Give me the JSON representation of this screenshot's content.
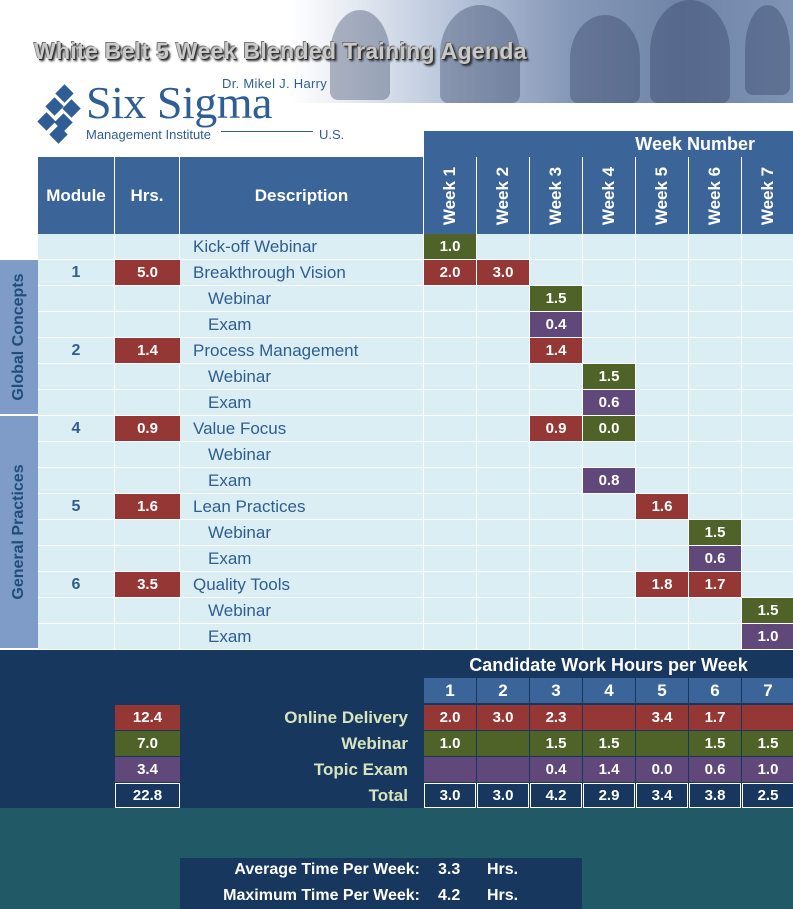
{
  "title": "White Belt 5 Week Blended  Training Agenda",
  "logo": {
    "top": "Dr. Mikel J. Harry",
    "main": "Six Sigma",
    "sub": "Management Institute",
    "country": "U.S."
  },
  "colors": {
    "header_blue": "#3b6498",
    "row_bg": "#daeef3",
    "online": "#953735",
    "webinar": "#4f6228",
    "exam": "#60497a",
    "navy": "#17375e",
    "teal": "#215967"
  },
  "table": {
    "week_number_label": "Week Number",
    "col_module": "Module",
    "col_hrs": "Hrs.",
    "col_description": "Description",
    "weeks": [
      "Week 1",
      "Week 2",
      "Week 3",
      "Week 4",
      "Week 5",
      "Week 6",
      "Week 7"
    ],
    "sections": [
      "Global Concepts",
      "General Practices"
    ],
    "rows": [
      {
        "module": "",
        "hrs": "",
        "desc": "Kick-off Webinar",
        "sub": false,
        "cells": [
          {
            "w": 0,
            "v": "1.0",
            "t": "green"
          }
        ]
      },
      {
        "module": "1",
        "hrs": "5.0",
        "desc": "Breakthrough Vision",
        "sub": false,
        "cells": [
          {
            "w": 0,
            "v": "2.0",
            "t": "red"
          },
          {
            "w": 1,
            "v": "3.0",
            "t": "red"
          }
        ]
      },
      {
        "module": "",
        "hrs": "",
        "desc": "Webinar",
        "sub": true,
        "cells": [
          {
            "w": 2,
            "v": "1.5",
            "t": "green"
          }
        ]
      },
      {
        "module": "",
        "hrs": "",
        "desc": "Exam",
        "sub": true,
        "cells": [
          {
            "w": 2,
            "v": "0.4",
            "t": "purple"
          }
        ]
      },
      {
        "module": "2",
        "hrs": "1.4",
        "desc": "Process Management",
        "sub": false,
        "cells": [
          {
            "w": 2,
            "v": "1.4",
            "t": "red"
          }
        ]
      },
      {
        "module": "",
        "hrs": "",
        "desc": "Webinar",
        "sub": true,
        "cells": [
          {
            "w": 3,
            "v": "1.5",
            "t": "green"
          }
        ]
      },
      {
        "module": "",
        "hrs": "",
        "desc": "Exam",
        "sub": true,
        "cells": [
          {
            "w": 3,
            "v": "0.6",
            "t": "purple"
          }
        ]
      },
      {
        "module": "4",
        "hrs": "0.9",
        "desc": "Value Focus",
        "sub": false,
        "cells": [
          {
            "w": 2,
            "v": "0.9",
            "t": "red"
          },
          {
            "w": 3,
            "v": "0.0",
            "t": "green"
          }
        ]
      },
      {
        "module": "",
        "hrs": "",
        "desc": "Webinar",
        "sub": true,
        "cells": []
      },
      {
        "module": "",
        "hrs": "",
        "desc": "Exam",
        "sub": true,
        "cells": [
          {
            "w": 3,
            "v": "0.8",
            "t": "purple"
          }
        ]
      },
      {
        "module": "5",
        "hrs": "1.6",
        "desc": "Lean Practices",
        "sub": false,
        "cells": [
          {
            "w": 4,
            "v": "1.6",
            "t": "red"
          }
        ]
      },
      {
        "module": "",
        "hrs": "",
        "desc": "Webinar",
        "sub": true,
        "cells": [
          {
            "w": 5,
            "v": "1.5",
            "t": "green"
          }
        ]
      },
      {
        "module": "",
        "hrs": "",
        "desc": "Exam",
        "sub": true,
        "cells": [
          {
            "w": 5,
            "v": "0.6",
            "t": "purple"
          }
        ]
      },
      {
        "module": "6",
        "hrs": "3.5",
        "desc": "Quality Tools",
        "sub": false,
        "cells": [
          {
            "w": 4,
            "v": "1.8",
            "t": "red"
          },
          {
            "w": 5,
            "v": "1.7",
            "t": "red"
          }
        ]
      },
      {
        "module": "",
        "hrs": "",
        "desc": "Webinar",
        "sub": true,
        "cells": [
          {
            "w": 6,
            "v": "1.5",
            "t": "green"
          }
        ]
      },
      {
        "module": "",
        "hrs": "",
        "desc": "Exam",
        "sub": true,
        "cells": [
          {
            "w": 6,
            "v": "1.0",
            "t": "purple"
          }
        ]
      }
    ]
  },
  "summary": {
    "title": "Candidate Work Hours per Week",
    "weeks": [
      "1",
      "2",
      "3",
      "4",
      "5",
      "6",
      "7"
    ],
    "rows": [
      {
        "label": "Online Delivery",
        "total": "12.4",
        "t": "red",
        "values": [
          "2.0",
          "3.0",
          "2.3",
          "",
          "3.4",
          "1.7",
          ""
        ]
      },
      {
        "label": "Webinar",
        "total": "7.0",
        "t": "green",
        "values": [
          "1.0",
          "",
          "1.5",
          "1.5",
          "",
          "1.5",
          "1.5"
        ]
      },
      {
        "label": "Topic Exam",
        "total": "3.4",
        "t": "purple",
        "values": [
          "",
          "",
          "0.4",
          "1.4",
          "0.0",
          "0.6",
          "1.0"
        ]
      },
      {
        "label": "Total",
        "total": "22.8",
        "t": "navy",
        "values": [
          "3.0",
          "3.0",
          "4.2",
          "2.9",
          "3.4",
          "3.8",
          "2.5"
        ]
      }
    ]
  },
  "averages": {
    "avg_label": "Average Time Per Week:",
    "avg_value": "3.3",
    "avg_unit": "Hrs.",
    "max_label": "Maximum Time Per Week:",
    "max_value": "4.2",
    "max_unit": "Hrs."
  }
}
